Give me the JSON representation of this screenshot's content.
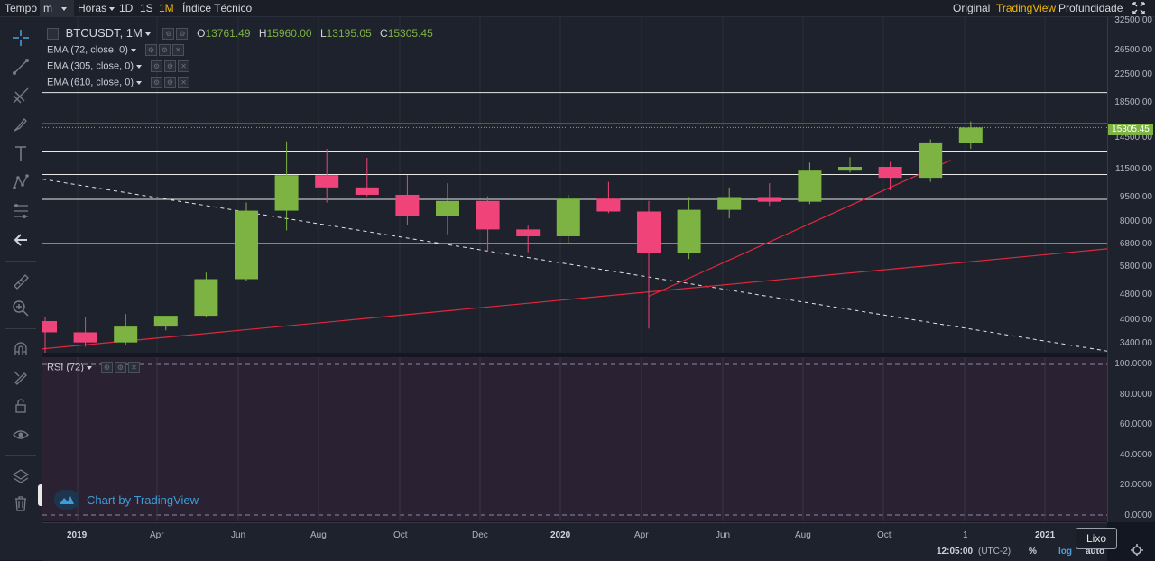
{
  "topbar": {
    "tempo": "Tempo",
    "minute_select": "m",
    "hours_select": "Horas",
    "intervals": [
      "1D",
      "1S",
      "1M"
    ],
    "active_interval": "1M",
    "indicators": "Índice Técnico",
    "views": [
      "Original",
      "TradingView",
      "Profundidade"
    ],
    "active_view": "TradingView"
  },
  "legend": {
    "symbol": "BTCUSDT, 1M",
    "open_label": "O",
    "open": "13761.49",
    "high_label": "H",
    "high": "15960.00",
    "low_label": "L",
    "low": "13195.05",
    "close_label": "C",
    "close": "15305.45"
  },
  "indicators": [
    {
      "label": "EMA (72, close, 0)"
    },
    {
      "label": "EMA (305, close, 0)"
    },
    {
      "label": "EMA (610, close, 0)"
    }
  ],
  "rsi": {
    "label": "RSI (72)"
  },
  "price_axis": {
    "labels": [
      "32500.00",
      "26500.00",
      "22500.00",
      "18500.00",
      "14500.00",
      "11500.00",
      "9500.00",
      "8000.00",
      "6800.00",
      "5800.00",
      "4800.00",
      "4000.00",
      "3400.00"
    ],
    "last_price": "15305.45",
    "last_price_color": "#7cb342"
  },
  "rsi_axis": {
    "labels": [
      "100.0000",
      "80.0000",
      "60.0000",
      "40.0000",
      "20.0000",
      "0.0000"
    ]
  },
  "time_axis": {
    "labels": [
      {
        "text": "2019",
        "bold": true
      },
      {
        "text": "Apr",
        "bold": false
      },
      {
        "text": "Jun",
        "bold": false
      },
      {
        "text": "Aug",
        "bold": false
      },
      {
        "text": "Oct",
        "bold": false
      },
      {
        "text": "Dec",
        "bold": false
      },
      {
        "text": "2020",
        "bold": true
      },
      {
        "text": "Apr",
        "bold": false
      },
      {
        "text": "Jun",
        "bold": false
      },
      {
        "text": "Aug",
        "bold": false
      },
      {
        "text": "Oct",
        "bold": false
      },
      {
        "text": "1",
        "bold": false
      },
      {
        "text": "2021",
        "bold": true
      }
    ],
    "clock": "12:05:00",
    "timezone": "(UTC-2)",
    "percent": "%",
    "log": "log",
    "auto": "auto"
  },
  "watermark": "Chart by TradingView",
  "tooltip": "Lixo",
  "colors": {
    "up": "#7cb342",
    "down": "#f0437a",
    "trendline": "#e0283c",
    "accent": "#f0b90b"
  },
  "chart_data": {
    "type": "candlestick",
    "symbol": "BTCUSDT",
    "interval": "1M",
    "scale": "log",
    "ylim": [
      3000,
      33000
    ],
    "candles": [
      {
        "t": "2018-12",
        "o": 4000,
        "h": 4100,
        "l": 3150,
        "c": 3700
      },
      {
        "t": "2019-01",
        "o": 3700,
        "h": 4100,
        "l": 3350,
        "c": 3450
      },
      {
        "t": "2019-02",
        "o": 3450,
        "h": 4200,
        "l": 3400,
        "c": 3850
      },
      {
        "t": "2019-03",
        "o": 3850,
        "h": 4150,
        "l": 3750,
        "c": 4150
      },
      {
        "t": "2019-04",
        "o": 4150,
        "h": 5600,
        "l": 4100,
        "c": 5350
      },
      {
        "t": "2019-05",
        "o": 5350,
        "h": 9100,
        "l": 5300,
        "c": 8600
      },
      {
        "t": "2019-06",
        "o": 8600,
        "h": 13900,
        "l": 7500,
        "c": 11000
      },
      {
        "t": "2019-07",
        "o": 11000,
        "h": 13200,
        "l": 9100,
        "c": 10100
      },
      {
        "t": "2019-08",
        "o": 10100,
        "h": 12400,
        "l": 9500,
        "c": 9600
      },
      {
        "t": "2019-09",
        "o": 9600,
        "h": 11000,
        "l": 7800,
        "c": 8300
      },
      {
        "t": "2019-10",
        "o": 8300,
        "h": 10400,
        "l": 7300,
        "c": 9200
      },
      {
        "t": "2019-11",
        "o": 9200,
        "h": 9500,
        "l": 6500,
        "c": 7550
      },
      {
        "t": "2019-12",
        "o": 7550,
        "h": 7750,
        "l": 6450,
        "c": 7200
      },
      {
        "t": "2020-01",
        "o": 7200,
        "h": 9600,
        "l": 6850,
        "c": 9350
      },
      {
        "t": "2020-02",
        "o": 9350,
        "h": 10500,
        "l": 8450,
        "c": 8550
      },
      {
        "t": "2020-03",
        "o": 8550,
        "h": 9200,
        "l": 3800,
        "c": 6400
      },
      {
        "t": "2020-04",
        "o": 6400,
        "h": 9450,
        "l": 6150,
        "c": 8650
      },
      {
        "t": "2020-05",
        "o": 8650,
        "h": 10100,
        "l": 8150,
        "c": 9450
      },
      {
        "t": "2020-06",
        "o": 9450,
        "h": 10400,
        "l": 8900,
        "c": 9150
      },
      {
        "t": "2020-07",
        "o": 9150,
        "h": 12000,
        "l": 9000,
        "c": 11350
      },
      {
        "t": "2020-08",
        "o": 11350,
        "h": 12450,
        "l": 11200,
        "c": 11650
      },
      {
        "t": "2020-09",
        "o": 11650,
        "h": 12050,
        "l": 9900,
        "c": 10800
      },
      {
        "t": "2020-10",
        "o": 10800,
        "h": 14100,
        "l": 10500,
        "c": 13800
      },
      {
        "t": "2020-11",
        "o": 13761.49,
        "h": 15960,
        "l": 13195.05,
        "c": 15305.45
      }
    ],
    "horizontal_levels": [
      19500,
      15700,
      13000,
      11050,
      9300,
      6850,
      3180
    ],
    "current_price_level": 15305.45
  }
}
